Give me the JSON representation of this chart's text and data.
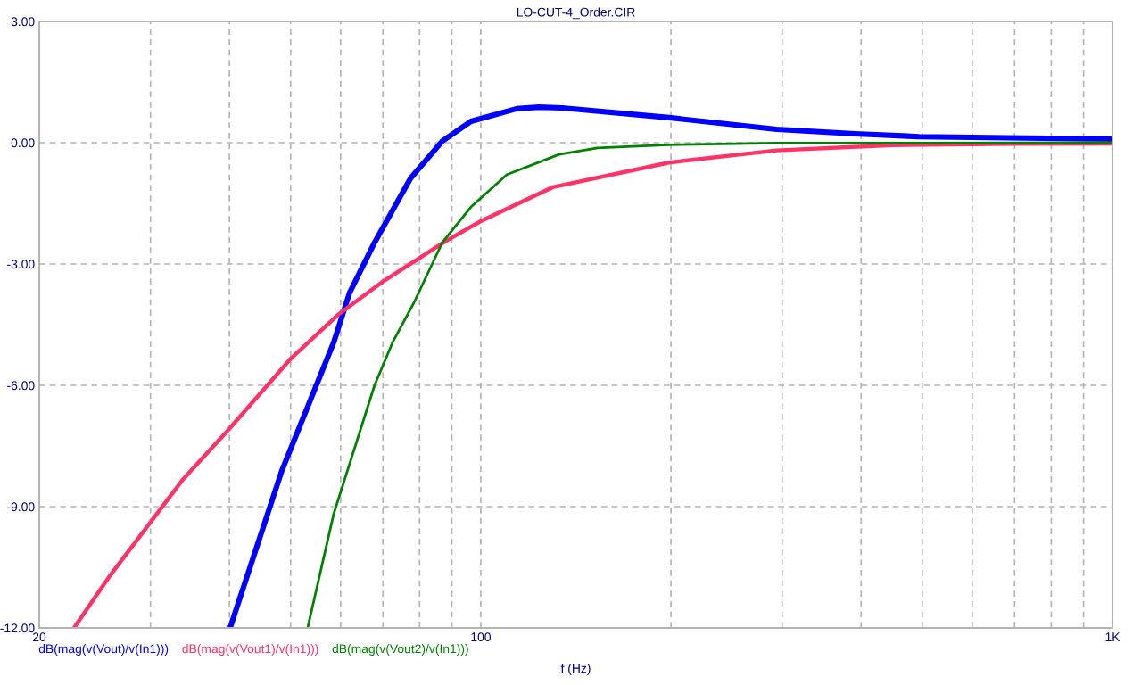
{
  "chart_data": {
    "type": "line",
    "title": "LO-CUT-4_Order.CIR",
    "xlabel": "f (Hz)",
    "log": "x",
    "grid": true,
    "legend": "bottom",
    "line_style": "solid",
    "marker": "none",
    "xlim": [
      20,
      1000
    ],
    "ylim": [
      -12,
      3
    ],
    "xticks": [
      20,
      {
        "value": 30,
        "label": null
      },
      {
        "value": 40,
        "label": null
      },
      {
        "value": 50,
        "label": null
      },
      {
        "value": 60,
        "label": null
      },
      {
        "value": 70,
        "label": null
      },
      {
        "value": 80,
        "label": null
      },
      {
        "value": 90,
        "label": null
      },
      100,
      {
        "value": 200,
        "label": null
      },
      {
        "value": 300,
        "label": null
      },
      {
        "value": 400,
        "label": null
      },
      {
        "value": 500,
        "label": null
      },
      {
        "value": 600,
        "label": null
      },
      {
        "value": 700,
        "label": null
      },
      {
        "value": 800,
        "label": null
      },
      {
        "value": 900,
        "label": null
      },
      {
        "value": 1000,
        "label": "1K"
      }
    ],
    "yticks": [
      {
        "value": 3,
        "label": "3.00"
      },
      {
        "value": 0,
        "label": "0.00"
      },
      {
        "value": -3,
        "label": "-3.00"
      },
      {
        "value": -6,
        "label": "-6.00"
      },
      {
        "value": -9,
        "label": "-9.00"
      },
      {
        "value": -12,
        "label": "-12.00"
      }
    ],
    "series": [
      {
        "name": "dB(mag(v(Vout)/v(In1)))",
        "color": "#0000ff",
        "x": [
          40.1,
          48.4,
          58.5,
          62.0,
          67.9,
          77.4,
          86.9,
          96.5,
          114,
          123.6,
          134.5,
          198.6,
          294,
          391,
          494,
          684,
          1000
        ],
        "values": [
          -12,
          -8.12,
          -4.94,
          -3.71,
          -2.47,
          -0.88,
          0.04,
          0.53,
          0.84,
          0.88,
          0.86,
          0.62,
          0.33,
          0.22,
          0.15,
          0.12,
          0.09
        ]
      },
      {
        "name": "dB(mag(v(Vout1)/v(In1)))",
        "color": "#ff3366",
        "x": [
          22.7,
          25.9,
          33.8,
          39.7,
          49.9,
          59.6,
          70.2,
          88.1,
          100,
          130,
          198.6,
          294,
          448,
          700,
          1000
        ],
        "values": [
          -12,
          -10.7,
          -8.32,
          -7.13,
          -5.36,
          -4.24,
          -3.42,
          -2.43,
          -1.94,
          -1.1,
          -0.49,
          -0.19,
          -0.06,
          -0.03,
          -0.02
        ]
      },
      {
        "name": "dB(mag(v(Vout2)/v(In1)))",
        "color": "#008000",
        "x": [
          53.2,
          58.5,
          67.9,
          72.5,
          78.3,
          86.9,
          96.5,
          110,
          133,
          153,
          198.6,
          294,
          1000
        ],
        "values": [
          -12,
          -9.18,
          -6.0,
          -4.94,
          -3.97,
          -2.47,
          -1.59,
          -0.79,
          -0.29,
          -0.13,
          -0.05,
          -0.01,
          0.0
        ]
      }
    ]
  }
}
